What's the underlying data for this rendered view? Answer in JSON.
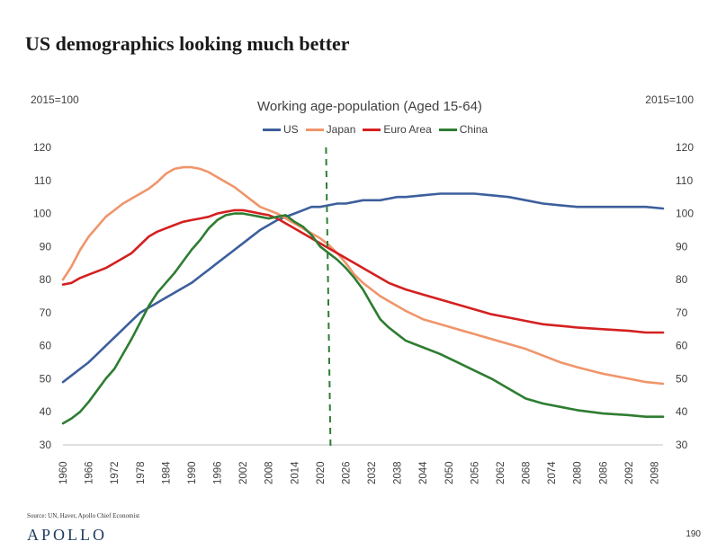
{
  "slide": {
    "title": "US demographics looking much better",
    "source": "Source: UN, Haver, Apollo Chief Economist",
    "logo": "APOLLO",
    "page_number": "190"
  },
  "chart_data": {
    "type": "line",
    "title": "Working age-population (Aged 15-64)",
    "left_axis_unit": "2015=100",
    "right_axis_unit": "2015=100",
    "ylim": [
      30,
      120
    ],
    "yticks": [
      "30",
      "40",
      "50",
      "60",
      "70",
      "80",
      "90",
      "100",
      "110",
      "120"
    ],
    "xlim": [
      1960,
      2100
    ],
    "xtick_labels": [
      "1960",
      "1966",
      "1972",
      "1978",
      "1984",
      "1990",
      "1996",
      "2002",
      "2008",
      "2014",
      "2020",
      "2026",
      "2032",
      "2038",
      "2044",
      "2050",
      "2056",
      "2062",
      "2068",
      "2074",
      "2080",
      "2086",
      "2092",
      "2098"
    ],
    "vertical_marker_year": 2022,
    "legend_position": "top",
    "series": [
      {
        "name": "US",
        "color": "#3d5f9c",
        "x": [
          1960,
          1962,
          1964,
          1966,
          1968,
          1970,
          1972,
          1974,
          1976,
          1978,
          1980,
          1982,
          1984,
          1986,
          1988,
          1990,
          1992,
          1994,
          1996,
          1998,
          2000,
          2002,
          2004,
          2006,
          2008,
          2010,
          2012,
          2014,
          2016,
          2018,
          2020,
          2022,
          2024,
          2026,
          2028,
          2030,
          2032,
          2034,
          2036,
          2038,
          2040,
          2044,
          2048,
          2052,
          2056,
          2060,
          2064,
          2068,
          2072,
          2076,
          2080,
          2086,
          2092,
          2096,
          2100
        ],
        "y": [
          49,
          51,
          53,
          55,
          57.5,
          60,
          62.5,
          65,
          67.5,
          70,
          71.5,
          73,
          74.5,
          76,
          77.5,
          79,
          81,
          83,
          85,
          87,
          89,
          91,
          93,
          95,
          96.5,
          98,
          99,
          100,
          101,
          102,
          102,
          102.5,
          103,
          103,
          103.5,
          104,
          104,
          104,
          104.5,
          105,
          105,
          105.5,
          106,
          106,
          106,
          105.5,
          105,
          104,
          103,
          102.5,
          102,
          102,
          102,
          102,
          101.5
        ]
      },
      {
        "name": "Japan",
        "color": "#f0956a",
        "x": [
          1960,
          1962,
          1964,
          1966,
          1968,
          1970,
          1972,
          1974,
          1976,
          1978,
          1980,
          1982,
          1984,
          1986,
          1988,
          1990,
          1992,
          1994,
          1996,
          1998,
          2000,
          2002,
          2004,
          2006,
          2008,
          2010,
          2012,
          2014,
          2016,
          2018,
          2020,
          2022,
          2024,
          2026,
          2028,
          2030,
          2032,
          2034,
          2036,
          2038,
          2040,
          2044,
          2048,
          2052,
          2056,
          2060,
          2064,
          2068,
          2072,
          2076,
          2080,
          2086,
          2092,
          2096,
          2100
        ],
        "y": [
          80,
          84,
          89,
          93,
          96,
          99,
          101,
          103,
          104.5,
          106,
          107.5,
          109.5,
          112,
          113.5,
          114,
          114,
          113.5,
          112.5,
          111,
          109.5,
          108,
          106,
          104,
          102,
          101,
          100,
          98.5,
          97,
          95.5,
          94,
          92.5,
          90.5,
          88,
          85,
          81.5,
          79,
          77,
          75,
          73.5,
          72,
          70.5,
          68,
          66.5,
          65,
          63.5,
          62,
          60.5,
          59,
          57,
          55,
          53.5,
          51.5,
          50,
          49,
          48.5
        ]
      },
      {
        "name": "Euro Area",
        "color": "#d42020",
        "x": [
          1960,
          1962,
          1964,
          1966,
          1968,
          1970,
          1972,
          1974,
          1976,
          1978,
          1980,
          1982,
          1984,
          1986,
          1988,
          1990,
          1992,
          1994,
          1996,
          1998,
          2000,
          2002,
          2004,
          2006,
          2008,
          2010,
          2012,
          2014,
          2016,
          2018,
          2020,
          2022,
          2024,
          2026,
          2028,
          2030,
          2032,
          2034,
          2036,
          2038,
          2040,
          2044,
          2048,
          2052,
          2056,
          2060,
          2064,
          2068,
          2072,
          2076,
          2080,
          2086,
          2092,
          2096,
          2100
        ],
        "y": [
          78.5,
          79,
          80.5,
          81.5,
          82.5,
          83.5,
          85,
          86.5,
          88,
          90.5,
          93,
          94.5,
          95.5,
          96.5,
          97.5,
          98,
          98.5,
          99,
          100,
          100.5,
          101,
          101,
          100.5,
          100,
          99.5,
          98.5,
          97,
          95.5,
          94,
          92.5,
          91,
          89.5,
          88,
          86.5,
          85,
          83.5,
          82,
          80.5,
          79,
          78,
          77,
          75.5,
          74,
          72.5,
          71,
          69.5,
          68.5,
          67.5,
          66.5,
          66,
          65.5,
          65,
          64.5,
          64,
          64
        ]
      },
      {
        "name": "China",
        "color": "#2e7d32",
        "x": [
          1960,
          1962,
          1964,
          1966,
          1968,
          1970,
          1972,
          1974,
          1976,
          1978,
          1980,
          1982,
          1984,
          1986,
          1988,
          1990,
          1992,
          1994,
          1996,
          1998,
          2000,
          2002,
          2004,
          2006,
          2008,
          2010,
          2012,
          2014,
          2016,
          2018,
          2020,
          2022,
          2024,
          2026,
          2028,
          2030,
          2032,
          2034,
          2036,
          2038,
          2040,
          2044,
          2048,
          2052,
          2056,
          2060,
          2064,
          2068,
          2072,
          2076,
          2080,
          2086,
          2092,
          2096,
          2100
        ],
        "y": [
          36.5,
          38,
          40,
          43,
          46.5,
          50,
          53,
          57.5,
          62,
          67,
          72,
          76,
          79,
          82,
          85.5,
          89,
          92,
          95.5,
          98,
          99.5,
          100,
          100,
          99.5,
          99,
          98.5,
          99,
          99.5,
          97.5,
          96,
          93.5,
          90,
          88,
          86,
          83.5,
          80.5,
          77,
          72.5,
          68,
          65.5,
          63.5,
          61.5,
          59.5,
          57.5,
          55,
          52.5,
          50,
          47,
          44,
          42.5,
          41.5,
          40.5,
          39.5,
          39,
          38.5,
          38.5
        ]
      }
    ]
  }
}
